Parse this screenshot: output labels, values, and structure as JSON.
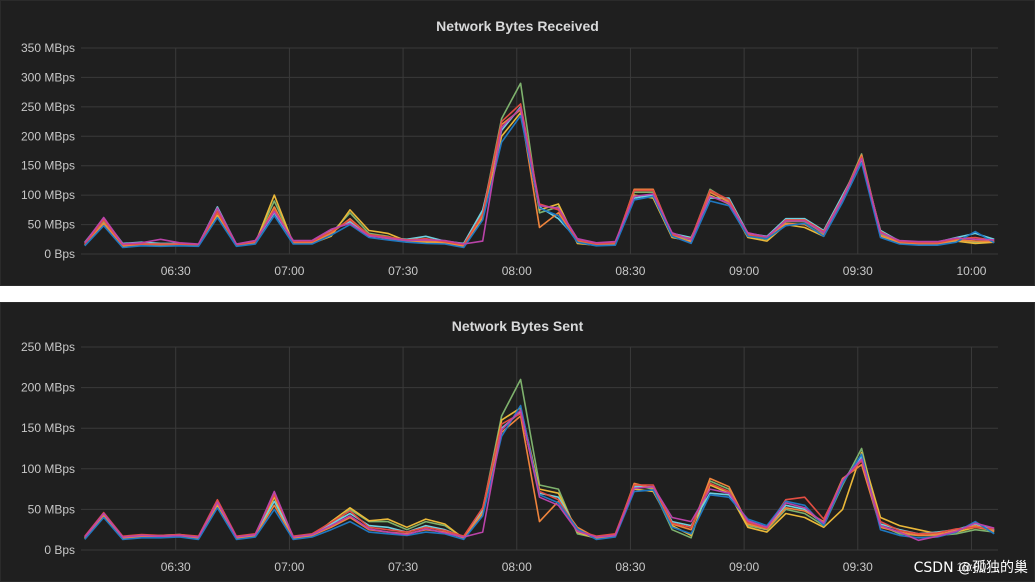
{
  "colors": {
    "background": "#1f1f1f",
    "grid": "#3a3a3a",
    "text": "#c8c8c8",
    "series": [
      "#7eb26d",
      "#eab839",
      "#6ed0e0",
      "#ef843c",
      "#e24d42",
      "#1f78c1",
      "#ba43a9",
      "#705da0",
      "#508642",
      "#cca300",
      "#447ebc",
      "#c15c17"
    ]
  },
  "watermark": "CSDN @孤独的巢",
  "chart_data": [
    {
      "type": "line",
      "title": "Network Bytes Received",
      "y_unit": "MBps",
      "yticks": [
        0,
        50,
        100,
        150,
        200,
        250,
        300,
        350
      ],
      "ytick_labels": [
        "0 Bps",
        "50 MBps",
        "100 MBps",
        "150 MBps",
        "200 MBps",
        "250 MBps",
        "300 MBps",
        "350 MBps"
      ],
      "ylim": [
        0,
        350
      ],
      "xlim": [
        "06:05",
        "10:07"
      ],
      "xticks": [
        "06:30",
        "07:00",
        "07:30",
        "08:00",
        "08:30",
        "09:00",
        "09:30",
        "10:00"
      ],
      "grid": true,
      "x": [
        "06:06",
        "06:11",
        "06:16",
        "06:21",
        "06:26",
        "06:31",
        "06:36",
        "06:41",
        "06:46",
        "06:51",
        "06:56",
        "07:01",
        "07:06",
        "07:11",
        "07:16",
        "07:21",
        "07:26",
        "07:31",
        "07:36",
        "07:41",
        "07:46",
        "07:51",
        "07:56",
        "08:01",
        "08:06",
        "08:11",
        "08:16",
        "08:21",
        "08:26",
        "08:31",
        "08:36",
        "08:41",
        "08:46",
        "08:51",
        "08:56",
        "09:01",
        "09:06",
        "09:11",
        "09:16",
        "09:21",
        "09:26",
        "09:31",
        "09:36",
        "09:41",
        "09:46",
        "09:51",
        "09:56",
        "10:01",
        "10:06"
      ],
      "series": [
        {
          "values": [
            18,
            55,
            15,
            18,
            15,
            17,
            15,
            75,
            15,
            20,
            90,
            20,
            20,
            35,
            70,
            35,
            30,
            20,
            25,
            20,
            15,
            70,
            230,
            290,
            70,
            80,
            20,
            15,
            18,
            105,
            105,
            30,
            25,
            110,
            90,
            30,
            25,
            55,
            55,
            35,
            95,
            170,
            35,
            20,
            18,
            18,
            25,
            20,
            22
          ]
        },
        {
          "values": [
            15,
            50,
            12,
            15,
            14,
            15,
            14,
            65,
            14,
            18,
            100,
            18,
            18,
            30,
            75,
            40,
            35,
            22,
            20,
            18,
            12,
            60,
            200,
            240,
            75,
            85,
            18,
            15,
            16,
            100,
            95,
            28,
            22,
            100,
            85,
            28,
            22,
            50,
            45,
            30,
            90,
            165,
            30,
            18,
            16,
            16,
            22,
            18,
            20
          ]
        },
        {
          "values": [
            20,
            60,
            18,
            20,
            18,
            18,
            16,
            80,
            16,
            22,
            70,
            22,
            22,
            40,
            55,
            30,
            28,
            25,
            30,
            22,
            18,
            75,
            210,
            250,
            80,
            60,
            25,
            18,
            20,
            95,
            100,
            35,
            28,
            95,
            95,
            35,
            30,
            60,
            60,
            40,
            100,
            160,
            40,
            22,
            20,
            20,
            28,
            35,
            25
          ]
        },
        {
          "values": [
            16,
            52,
            14,
            16,
            16,
            16,
            15,
            70,
            15,
            19,
            80,
            19,
            19,
            35,
            60,
            32,
            26,
            22,
            22,
            20,
            14,
            65,
            220,
            245,
            45,
            70,
            22,
            16,
            17,
            110,
            110,
            32,
            20,
            105,
            88,
            32,
            28,
            52,
            50,
            32,
            92,
            168,
            32,
            20,
            17,
            17,
            24,
            22,
            21
          ]
        },
        {
          "values": [
            17,
            58,
            16,
            17,
            17,
            17,
            16,
            72,
            16,
            21,
            75,
            21,
            21,
            38,
            58,
            33,
            29,
            24,
            26,
            21,
            16,
            68,
            225,
            255,
            85,
            75,
            24,
            17,
            19,
            108,
            108,
            33,
            26,
            108,
            92,
            33,
            27,
            58,
            58,
            38,
            96,
            165,
            38,
            21,
            19,
            19,
            26,
            28,
            23
          ]
        },
        {
          "values": [
            14,
            48,
            11,
            14,
            13,
            14,
            13,
            62,
            13,
            17,
            65,
            17,
            17,
            32,
            50,
            28,
            24,
            20,
            18,
            17,
            11,
            58,
            190,
            235,
            78,
            65,
            20,
            14,
            15,
            92,
            98,
            30,
            18,
            90,
            82,
            30,
            26,
            48,
            52,
            30,
            88,
            155,
            28,
            17,
            15,
            15,
            20,
            38,
            19
          ]
        },
        {
          "values": [
            19,
            62,
            17,
            19,
            25,
            19,
            17,
            78,
            17,
            23,
            72,
            23,
            23,
            42,
            52,
            31,
            27,
            23,
            24,
            23,
            17,
            22,
            215,
            248,
            82,
            78,
            26,
            19,
            21,
            98,
            102,
            36,
            24,
            98,
            86,
            36,
            29,
            56,
            56,
            36,
            94,
            162,
            36,
            23,
            21,
            21,
            27,
            25,
            24
          ]
        }
      ]
    },
    {
      "type": "line",
      "title": "Network Bytes Sent",
      "y_unit": "MBps",
      "yticks": [
        0,
        50,
        100,
        150,
        200,
        250
      ],
      "ytick_labels": [
        "0 Bps",
        "50 MBps",
        "100 MBps",
        "150 MBps",
        "200 MBps",
        "250 MBps"
      ],
      "ylim": [
        0,
        250
      ],
      "xlim": [
        "06:05",
        "10:07"
      ],
      "xticks": [
        "06:30",
        "07:00",
        "07:30",
        "08:00",
        "08:30",
        "09:00",
        "09:30",
        "10:00"
      ],
      "grid": true,
      "x": [
        "06:06",
        "06:11",
        "06:16",
        "06:21",
        "06:26",
        "06:31",
        "06:36",
        "06:41",
        "06:46",
        "06:51",
        "06:56",
        "07:01",
        "07:06",
        "07:11",
        "07:16",
        "07:21",
        "07:26",
        "07:31",
        "07:36",
        "07:41",
        "07:46",
        "07:51",
        "07:56",
        "08:01",
        "08:06",
        "08:11",
        "08:16",
        "08:21",
        "08:26",
        "08:31",
        "08:36",
        "08:41",
        "08:46",
        "08:51",
        "08:56",
        "09:01",
        "09:06",
        "09:11",
        "09:16",
        "09:21",
        "09:26",
        "09:31",
        "09:36",
        "09:41",
        "09:46",
        "09:51",
        "09:56",
        "10:01",
        "10:06"
      ],
      "series": [
        {
          "values": [
            15,
            45,
            15,
            18,
            17,
            18,
            15,
            60,
            15,
            18,
            70,
            15,
            18,
            30,
            50,
            35,
            35,
            25,
            35,
            30,
            15,
            50,
            165,
            210,
            80,
            75,
            20,
            15,
            18,
            80,
            75,
            25,
            15,
            85,
            75,
            30,
            25,
            50,
            45,
            30,
            80,
            125,
            30,
            20,
            18,
            18,
            20,
            25,
            22
          ]
        },
        {
          "values": [
            14,
            42,
            14,
            16,
            16,
            17,
            14,
            55,
            14,
            17,
            65,
            14,
            17,
            35,
            52,
            36,
            38,
            28,
            38,
            32,
            14,
            45,
            160,
            175,
            75,
            70,
            22,
            14,
            17,
            75,
            72,
            30,
            18,
            80,
            70,
            28,
            22,
            45,
            40,
            28,
            50,
            120,
            40,
            30,
            25,
            20,
            22,
            28,
            24
          ]
        },
        {
          "values": [
            16,
            44,
            16,
            17,
            18,
            19,
            16,
            58,
            16,
            19,
            60,
            16,
            19,
            32,
            45,
            30,
            28,
            22,
            30,
            25,
            16,
            48,
            150,
            170,
            70,
            65,
            25,
            16,
            19,
            78,
            78,
            35,
            30,
            70,
            68,
            35,
            28,
            55,
            50,
            32,
            85,
            115,
            32,
            25,
            20,
            22,
            25,
            32,
            25
          ]
        },
        {
          "values": [
            15,
            43,
            15,
            17,
            17,
            18,
            15,
            57,
            15,
            18,
            55,
            15,
            18,
            28,
            40,
            25,
            22,
            20,
            25,
            22,
            15,
            46,
            145,
            165,
            35,
            60,
            28,
            15,
            18,
            82,
            76,
            32,
            25,
            88,
            78,
            32,
            26,
            52,
            48,
            35,
            88,
            105,
            28,
            22,
            18,
            19,
            24,
            30,
            23
          ]
        },
        {
          "values": [
            17,
            46,
            17,
            19,
            18,
            19,
            17,
            62,
            17,
            20,
            68,
            17,
            20,
            34,
            48,
            28,
            25,
            22,
            28,
            24,
            17,
            52,
            155,
            168,
            72,
            62,
            24,
            17,
            20,
            80,
            80,
            33,
            28,
            82,
            72,
            34,
            27,
            62,
            65,
            38,
            85,
            110,
            35,
            24,
            20,
            21,
            26,
            28,
            26
          ]
        },
        {
          "values": [
            13,
            40,
            13,
            15,
            15,
            16,
            13,
            52,
            13,
            16,
            50,
            13,
            16,
            25,
            35,
            22,
            20,
            18,
            22,
            20,
            13,
            42,
            140,
            178,
            68,
            58,
            26,
            13,
            16,
            72,
            74,
            28,
            20,
            68,
            65,
            38,
            30,
            60,
            55,
            30,
            82,
            118,
            25,
            18,
            15,
            16,
            22,
            35,
            20
          ]
        },
        {
          "values": [
            16,
            45,
            16,
            18,
            17,
            18,
            16,
            59,
            16,
            19,
            72,
            16,
            19,
            30,
            42,
            26,
            22,
            19,
            26,
            21,
            16,
            22,
            148,
            172,
            65,
            55,
            23,
            16,
            18,
            76,
            78,
            40,
            35,
            75,
            70,
            36,
            28,
            58,
            52,
            33,
            86,
            112,
            30,
            22,
            12,
            17,
            23,
            33,
            27
          ]
        }
      ]
    }
  ]
}
